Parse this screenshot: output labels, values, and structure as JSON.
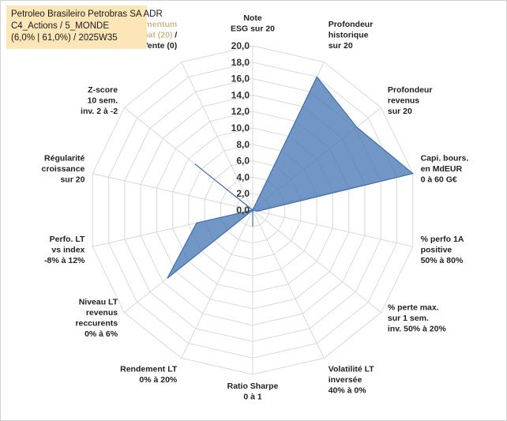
{
  "header": {
    "line1": "Petroleo Brasileiro Petrobras SA ADR",
    "line2": "C4_Actions / 5_MONDE",
    "line3": "(6,0% | 61,0%) / 2025W35"
  },
  "chart_data": {
    "type": "radar",
    "rmin": 0,
    "rmax": 20,
    "ticks": [
      "0,0",
      "2,0",
      "4,0",
      "6,0",
      "8,0",
      "10,0",
      "12,0",
      "14,0",
      "16,0",
      "18,0",
      "20,0"
    ],
    "grid": true,
    "fill_color": "#4a78b5",
    "stroke_color": "#3f6fae",
    "axes": [
      {
        "lines": [
          "Note",
          "ESG sur 20"
        ],
        "value": 0.0
      },
      {
        "lines": [
          "Profondeur",
          "historique",
          "sur 20"
        ],
        "value": 18.0
      },
      {
        "lines": [
          "Profondeur",
          "revenus",
          "sur 20"
        ],
        "value": 16.2
      },
      {
        "lines": [
          "Capi. bours.",
          "en MdEUR",
          "0 à 60 G€"
        ],
        "value": 20.0
      },
      {
        "lines": [
          "% perfo 1A",
          "positive",
          "50% à 80%"
        ],
        "value": 0.6
      },
      {
        "lines": [
          "% perte max.",
          "sur 1 sem.",
          "inv. 50% à 20%"
        ],
        "value": 0.0
      },
      {
        "lines": [
          "Volatilité LT",
          "inversée",
          "40% à 0%"
        ],
        "value": 0.0
      },
      {
        "lines": [
          "Ratio Sharpe",
          "0 à 1"
        ],
        "value": 2.0
      },
      {
        "lines": [
          "Rendement LT",
          "0% à 20%"
        ],
        "value": 0.0
      },
      {
        "lines": [
          "Niveau LT",
          "revenus",
          "reccurents",
          "0% à 6%"
        ],
        "value": 13.3
      },
      {
        "lines": [
          "Perfo. LT",
          "vs index",
          "-8% à 12%"
        ],
        "value": 7.0
      },
      {
        "lines": [
          "Régularité",
          "croissance",
          "sur 20"
        ],
        "value": 0.0
      },
      {
        "lines": [
          "Z-score",
          "10 sem.",
          "inv. 2 à -2"
        ],
        "value": 9.0
      },
      {
        "lines": [
          "Momentum",
          "Achat (20) /",
          "Vente (0)"
        ],
        "highlight": [
          "Momentum",
          "Achat (20)"
        ],
        "value": 0.0
      }
    ]
  }
}
